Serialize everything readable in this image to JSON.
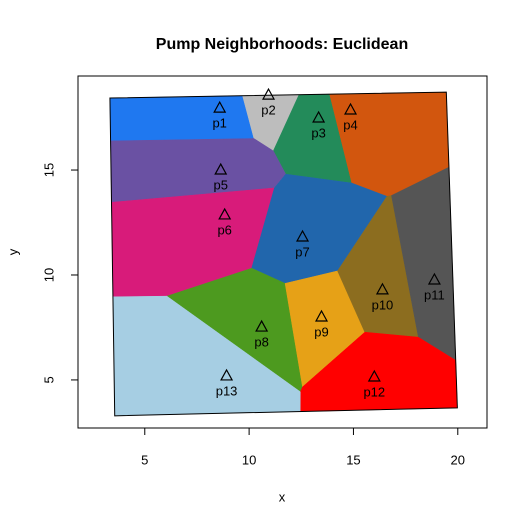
{
  "chart_data": {
    "type": "scatter",
    "title": "Pump Neighborhoods: Euclidean",
    "xlabel": "x",
    "ylabel": "y",
    "labels": [
      "p1",
      "p2",
      "p3",
      "p4",
      "p5",
      "p6",
      "p7",
      "p8",
      "p9",
      "p10",
      "p11",
      "p12",
      "p13"
    ],
    "x": [
      8.59,
      10.93,
      13.33,
      14.86,
      8.64,
      8.83,
      12.56,
      10.6,
      13.47,
      16.39,
      18.88,
      16.0,
      8.92
    ],
    "y": [
      17.95,
      18.57,
      17.48,
      17.86,
      15.0,
      12.86,
      11.81,
      7.52,
      8.0,
      9.29,
      9.76,
      5.14,
      5.19
    ],
    "colors": [
      "#1f78f0",
      "#bdbdbd",
      "#238b5a",
      "#d2560e",
      "#6a51a3",
      "#d81b7a",
      "#2166ac",
      "#4d9a1f",
      "#e6a117",
      "#8c6d1f",
      "#555555",
      "#ff0000",
      "#a6cee3"
    ],
    "boundary": {
      "x": [
        3.33,
        19.45,
        19.98,
        3.56
      ],
      "y": [
        18.43,
        18.71,
        3.67,
        3.29
      ]
    },
    "xlim": [
      1.8,
      21.4
    ],
    "ylim": [
      2.71,
      19.48
    ],
    "xticks": [
      5,
      10,
      15,
      20
    ],
    "yticks": [
      5,
      10,
      15
    ]
  }
}
